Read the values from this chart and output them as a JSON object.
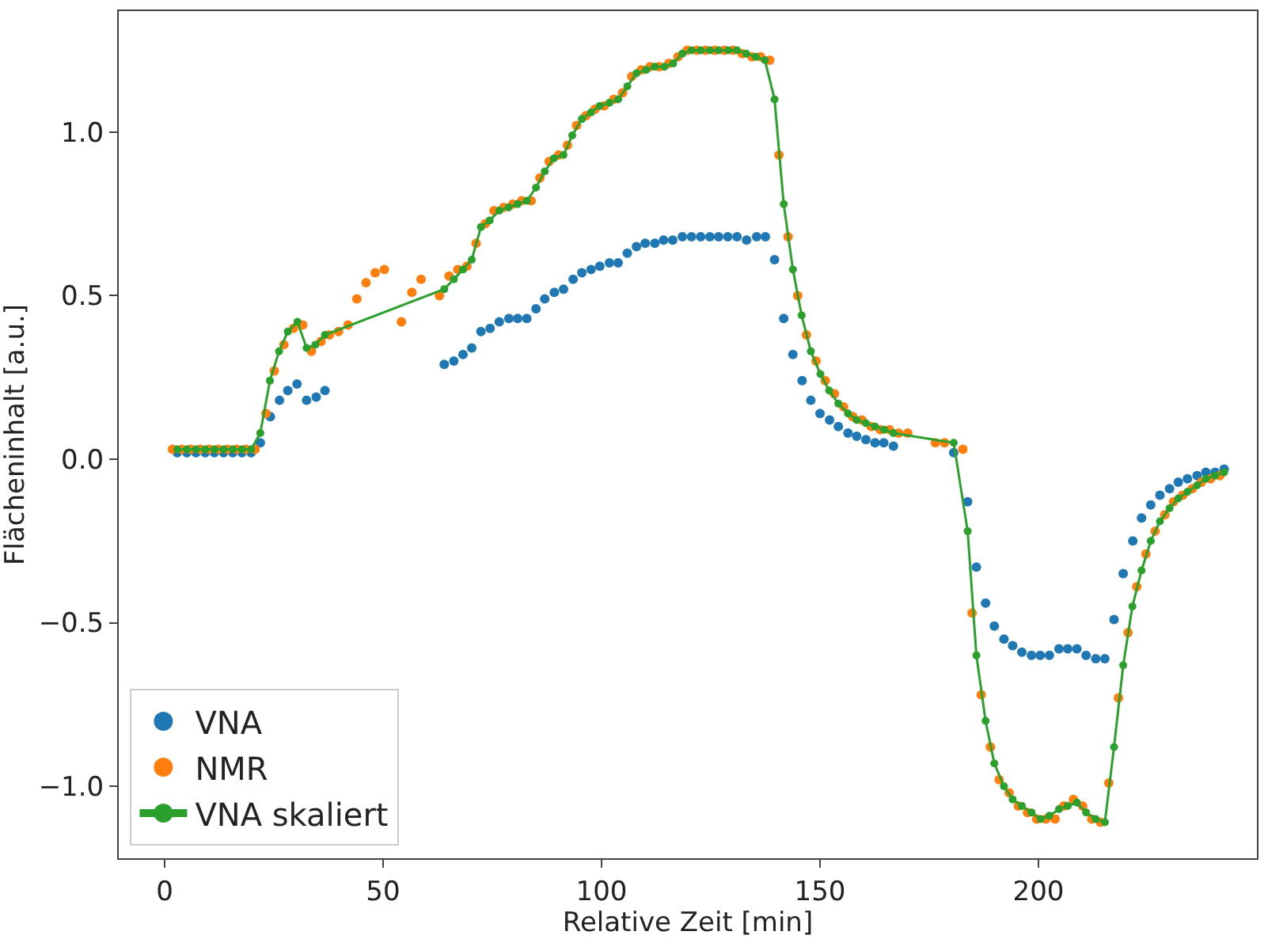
{
  "chart_data": {
    "type": "scatter",
    "xlabel": "Relative Zeit [min]",
    "ylabel": "Flächeninhalt [a.u.]",
    "xlim": [
      -10.5,
      250
    ],
    "xticks": [
      0,
      50,
      100,
      150,
      200
    ],
    "ylim": [
      -1.22,
      1.37
    ],
    "yticks": [
      {
        "value": -1.0,
        "label": "−1.0"
      },
      {
        "value": -0.5,
        "label": "−0.5"
      },
      {
        "value": 0.0,
        "label": "0.0"
      },
      {
        "value": 0.5,
        "label": "0.5"
      },
      {
        "value": 1.0,
        "label": "1.0"
      }
    ],
    "grid": false,
    "legend": "bottom left",
    "series": [
      {
        "name": "VNA",
        "marker": "circle",
        "color": "#1f77b4",
        "x": [
          2.9,
          5.1,
          7.2,
          9.3,
          11.4,
          13.5,
          15.6,
          17.7,
          19.8,
          21.9,
          24.2,
          26.3,
          28.2,
          30.3,
          32.5,
          34.7,
          36.7,
          64,
          66.2,
          68.3,
          70.3,
          72.4,
          74.5,
          76.6,
          78.8,
          80.8,
          82.9,
          85,
          87,
          89.2,
          91.3,
          93.5,
          95.5,
          97.6,
          99.6,
          101.8,
          103.8,
          105.9,
          108,
          110,
          112.2,
          114.2,
          116.3,
          118.5,
          120.6,
          122.7,
          124.8,
          126.8,
          128.9,
          131,
          133.2,
          135.5,
          137.5,
          139.6,
          141.7,
          143.8,
          145.9,
          147.9,
          150,
          152.2,
          154.2,
          156.4,
          158.4,
          160.5,
          162.6,
          164.6,
          166.8,
          180.6,
          183.8,
          185.8,
          187.9,
          189.9,
          192.1,
          194.1,
          196.2,
          198.4,
          200.4,
          202.5,
          204.7,
          206.7,
          208.8,
          210.9,
          213.1,
          215.2,
          217.3,
          219.4,
          221.6,
          223.6,
          225.7,
          227.8,
          230,
          232,
          234.1,
          236.3,
          238.3,
          240.4,
          242.5
        ],
        "values": [
          0.02,
          0.02,
          0.02,
          0.02,
          0.02,
          0.02,
          0.02,
          0.02,
          0.02,
          0.05,
          0.13,
          0.18,
          0.21,
          0.23,
          0.18,
          0.19,
          0.21,
          0.29,
          0.3,
          0.32,
          0.34,
          0.39,
          0.4,
          0.42,
          0.43,
          0.43,
          0.43,
          0.46,
          0.49,
          0.51,
          0.52,
          0.55,
          0.57,
          0.58,
          0.59,
          0.6,
          0.6,
          0.63,
          0.65,
          0.66,
          0.66,
          0.67,
          0.67,
          0.68,
          0.68,
          0.68,
          0.68,
          0.68,
          0.68,
          0.68,
          0.67,
          0.68,
          0.68,
          0.61,
          0.43,
          0.32,
          0.24,
          0.18,
          0.14,
          0.12,
          0.1,
          0.08,
          0.07,
          0.06,
          0.05,
          0.05,
          0.04,
          0.02,
          -0.13,
          -0.33,
          -0.44,
          -0.51,
          -0.55,
          -0.57,
          -0.59,
          -0.6,
          -0.6,
          -0.6,
          -0.58,
          -0.58,
          -0.58,
          -0.6,
          -0.61,
          -0.61,
          -0.49,
          -0.35,
          -0.25,
          -0.18,
          -0.14,
          -0.11,
          -0.09,
          -0.07,
          -0.06,
          -0.05,
          -0.04,
          -0.04,
          -0.03
        ]
      },
      {
        "name": "NMR",
        "marker": "circle",
        "color": "#ff7f0e",
        "x": [
          1.8,
          3.9,
          6,
          8.1,
          10.2,
          12.3,
          14.4,
          16.5,
          18.6,
          20.7,
          23.2,
          25.1,
          27.3,
          29.5,
          31.6,
          33.6,
          35.8,
          37.7,
          39.8,
          42,
          44,
          46.1,
          48.2,
          50.3,
          54.2,
          56.6,
          58.7,
          62.9,
          65.1,
          67.1,
          69.2,
          71.3,
          73.4,
          75.4,
          77.6,
          79.7,
          81.7,
          83.9,
          85.9,
          88,
          90.2,
          92.2,
          94.3,
          96.4,
          98.5,
          100.6,
          102.8,
          104.8,
          106.9,
          109.1,
          111.1,
          113.2,
          115.4,
          117.5,
          119.6,
          121.8,
          123.8,
          125.9,
          128.1,
          130.1,
          132.2,
          134.4,
          136.4,
          138.5,
          140.6,
          142.7,
          144.9,
          146.9,
          149.1,
          151.2,
          153.3,
          155.4,
          157.5,
          159.6,
          161.7,
          163.8,
          165.9,
          168,
          170.1,
          176.4,
          178.5,
          182.7,
          184.8,
          186.9,
          189,
          191,
          193.3,
          195.4,
          197.5,
          199.6,
          201.7,
          203.8,
          205.8,
          208,
          210.1,
          212.2,
          214.2,
          216.1,
          218.3,
          220.5,
          222.5,
          224.6,
          226.7,
          228.9,
          230.9,
          233,
          235.2,
          237.3,
          239.4,
          241.5
        ],
        "values": [
          0.03,
          0.03,
          0.03,
          0.03,
          0.03,
          0.03,
          0.03,
          0.03,
          0.03,
          0.03,
          0.14,
          0.27,
          0.35,
          0.4,
          0.41,
          0.33,
          0.36,
          0.38,
          0.39,
          0.41,
          0.49,
          0.54,
          0.57,
          0.58,
          0.42,
          0.51,
          0.55,
          0.5,
          0.56,
          0.58,
          0.59,
          0.66,
          0.72,
          0.76,
          0.77,
          0.78,
          0.79,
          0.79,
          0.86,
          0.91,
          0.93,
          0.96,
          1.02,
          1.05,
          1.07,
          1.08,
          1.1,
          1.12,
          1.17,
          1.19,
          1.2,
          1.2,
          1.21,
          1.23,
          1.25,
          1.25,
          1.25,
          1.25,
          1.25,
          1.25,
          1.24,
          1.23,
          1.23,
          1.22,
          0.93,
          0.68,
          0.5,
          0.38,
          0.3,
          0.24,
          0.2,
          0.16,
          0.13,
          0.12,
          0.1,
          0.09,
          0.09,
          0.08,
          0.08,
          0.05,
          0.05,
          0.03,
          -0.47,
          -0.72,
          -0.88,
          -0.98,
          -1.02,
          -1.06,
          -1.08,
          -1.1,
          -1.1,
          -1.1,
          -1.06,
          -1.04,
          -1.06,
          -1.1,
          -1.11,
          -0.99,
          -0.73,
          -0.53,
          -0.39,
          -0.29,
          -0.22,
          -0.17,
          -0.13,
          -0.11,
          -0.09,
          -0.07,
          -0.06,
          -0.05
        ]
      },
      {
        "name": "VNA skaliert",
        "type": "line",
        "marker": "circle",
        "line_style": "solid",
        "color": "#2ca02c",
        "x": [
          2.9,
          5.1,
          7.2,
          9.3,
          11.4,
          13.5,
          15.6,
          17.7,
          19.8,
          21.9,
          24.1,
          26.2,
          28.2,
          30.4,
          32.5,
          34.5,
          36.7,
          64,
          66.2,
          68.3,
          70.3,
          72.4,
          74.4,
          76.6,
          78.7,
          80.8,
          82.9,
          85,
          87,
          89.1,
          91.3,
          93.3,
          95.5,
          97.6,
          99.6,
          101.8,
          103.8,
          105.9,
          108,
          110.2,
          112.2,
          114.4,
          116.4,
          118.5,
          120.6,
          122.7,
          124.8,
          126.8,
          129,
          131,
          133.1,
          135.3,
          137.4,
          139.6,
          141.7,
          143.8,
          145.8,
          147.9,
          150.1,
          152.1,
          154.2,
          156.4,
          158.4,
          160.5,
          162.6,
          164.7,
          166.8,
          180.6,
          183.8,
          185.8,
          187.9,
          189.9,
          192.1,
          194.1,
          196.2,
          198.4,
          200.5,
          202.5,
          204.7,
          206.7,
          208.8,
          210.9,
          213.1,
          215.2,
          217.3,
          219.4,
          221.5,
          223.6,
          225.7,
          227.8,
          230,
          232,
          234.1,
          236.3,
          238.3,
          240.4,
          242.5
        ],
        "values": [
          0.03,
          0.03,
          0.03,
          0.03,
          0.03,
          0.03,
          0.03,
          0.03,
          0.03,
          0.08,
          0.24,
          0.33,
          0.39,
          0.42,
          0.34,
          0.35,
          0.38,
          0.52,
          0.55,
          0.58,
          0.61,
          0.71,
          0.73,
          0.76,
          0.77,
          0.78,
          0.79,
          0.83,
          0.88,
          0.92,
          0.93,
          0.99,
          1.04,
          1.06,
          1.08,
          1.09,
          1.1,
          1.14,
          1.18,
          1.19,
          1.2,
          1.2,
          1.21,
          1.24,
          1.25,
          1.25,
          1.25,
          1.25,
          1.25,
          1.25,
          1.24,
          1.23,
          1.22,
          1.1,
          0.78,
          0.58,
          0.44,
          0.33,
          0.26,
          0.21,
          0.17,
          0.14,
          0.12,
          0.11,
          0.1,
          0.09,
          0.08,
          0.05,
          -0.22,
          -0.6,
          -0.8,
          -0.93,
          -1.0,
          -1.04,
          -1.06,
          -1.08,
          -1.1,
          -1.09,
          -1.07,
          -1.06,
          -1.05,
          -1.08,
          -1.1,
          -1.11,
          -0.88,
          -0.63,
          -0.45,
          -0.34,
          -0.25,
          -0.19,
          -0.15,
          -0.12,
          -0.1,
          -0.08,
          -0.06,
          -0.05,
          -0.04
        ]
      }
    ]
  }
}
